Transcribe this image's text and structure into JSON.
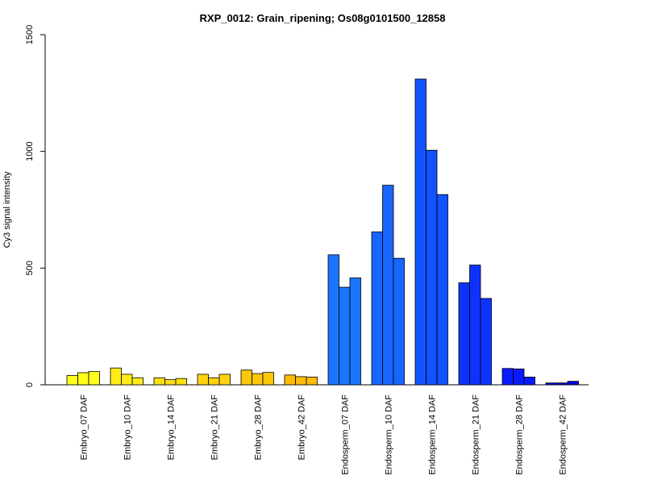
{
  "chart_data": {
    "type": "bar",
    "title": "RXP_0012: Grain_ripening; Os08g0101500_12858",
    "xlabel": "",
    "ylabel": "Cy3 signal intensity",
    "ylim": [
      0,
      1500
    ],
    "yticks": [
      0,
      500,
      1000,
      1500
    ],
    "grid": false,
    "legend": "none",
    "bars_per_group": 3,
    "categories": [
      "Embryo_07 DAF",
      "Embryo_10 DAF",
      "Embryo_14 DAF",
      "Embryo_21 DAF",
      "Embryo_28 DAF",
      "Embryo_42 DAF",
      "Endosperm_07 DAF",
      "Endosperm_10 DAF",
      "Endosperm_14 DAF",
      "Endosperm_21 DAF",
      "Endosperm_28 DAF",
      "Endosperm_42 DAF"
    ],
    "values": [
      [
        40,
        52,
        57
      ],
      [
        72,
        45,
        30
      ],
      [
        30,
        22,
        27
      ],
      [
        45,
        30,
        45
      ],
      [
        63,
        48,
        53
      ],
      [
        42,
        35,
        33
      ],
      [
        557,
        418,
        458
      ],
      [
        655,
        855,
        542
      ],
      [
        1310,
        1005,
        815
      ],
      [
        437,
        513,
        370
      ],
      [
        70,
        68,
        33
      ],
      [
        8,
        8,
        15
      ]
    ],
    "colors": [
      "#ffff1a",
      "#ffec16",
      "#ffe012",
      "#ffd40e",
      "#ffc70a",
      "#ffbb06",
      "#1a75ff",
      "#1666ff",
      "#1252ff",
      "#0e33ff",
      "#0a1aff",
      "#0606e6"
    ]
  }
}
